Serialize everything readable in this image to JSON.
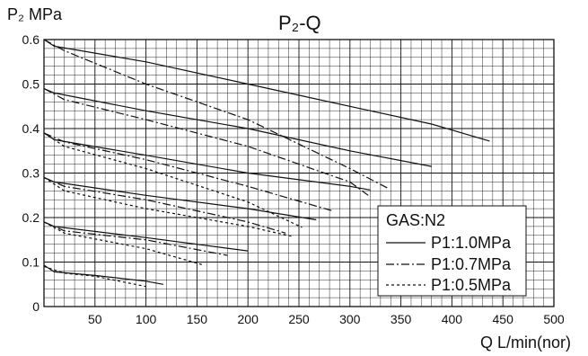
{
  "chart_data": {
    "type": "line",
    "title": "P₂-Q",
    "xlabel": "Q L/min(nor)",
    "ylabel": "P₂ MPa",
    "xlim": [
      0,
      500
    ],
    "ylim": [
      0,
      0.6
    ],
    "x_ticks": [
      "50",
      "100",
      "150",
      "200",
      "250",
      "300",
      "350",
      "400",
      "450",
      "500"
    ],
    "y_ticks": [
      "0",
      "0.1",
      "0.2",
      "0.3",
      "0.4",
      "0.5",
      "0.6"
    ],
    "grid": true,
    "legend_title": "GAS:N2",
    "legend_position": "bottom-right",
    "legend": [
      {
        "label": "P1:1.0MPa",
        "style": "solid"
      },
      {
        "label": "P1:0.7MPa",
        "style": "dashdot"
      },
      {
        "label": "P1:0.5MPa",
        "style": "dotted"
      }
    ],
    "series": [
      {
        "supply": "P1:1.0MPa",
        "style": "solid",
        "curves": [
          {
            "x": [
              0,
              10,
              100,
              200,
              300,
              380,
              437
            ],
            "y": [
              0.6,
              0.585,
              0.55,
              0.5,
              0.45,
              0.41,
              0.372
            ]
          },
          {
            "x": [
              0,
              10,
              100,
              200,
              300,
              380
            ],
            "y": [
              0.49,
              0.48,
              0.44,
              0.4,
              0.35,
              0.315
            ]
          },
          {
            "x": [
              0,
              10,
              100,
              200,
              300,
              320
            ],
            "y": [
              0.39,
              0.375,
              0.34,
              0.3,
              0.27,
              0.262
            ]
          },
          {
            "x": [
              0,
              10,
              100,
              200,
              267
            ],
            "y": [
              0.29,
              0.28,
              0.25,
              0.22,
              0.195
            ]
          },
          {
            "x": [
              0,
              10,
              100,
              200
            ],
            "y": [
              0.19,
              0.18,
              0.155,
              0.125
            ]
          },
          {
            "x": [
              0,
              10,
              50,
              100,
              117
            ],
            "y": [
              0.093,
              0.078,
              0.07,
              0.057,
              0.05
            ]
          }
        ]
      },
      {
        "supply": "P1:0.7MPa",
        "style": "dashdot",
        "curves": [
          {
            "x": [
              0,
              20,
              100,
              200,
              300,
              338
            ],
            "y": [
              0.6,
              0.575,
              0.5,
              0.42,
              0.31,
              0.265
            ]
          },
          {
            "x": [
              0,
              20,
              100,
              200,
              300,
              318
            ],
            "y": [
              0.49,
              0.465,
              0.42,
              0.36,
              0.28,
              0.25
            ]
          },
          {
            "x": [
              0,
              20,
              100,
              200,
              283
            ],
            "y": [
              0.39,
              0.37,
              0.33,
              0.27,
              0.215
            ]
          },
          {
            "x": [
              0,
              20,
              100,
              200,
              237
            ],
            "y": [
              0.29,
              0.27,
              0.24,
              0.19,
              0.165
            ]
          },
          {
            "x": [
              0,
              20,
              100,
              180
            ],
            "y": [
              0.19,
              0.17,
              0.15,
              0.115
            ]
          }
        ]
      },
      {
        "supply": "P1:0.5MPa",
        "style": "dotted",
        "curves": [
          {
            "x": [
              0,
              20,
              100,
              200,
              253
            ],
            "y": [
              0.39,
              0.36,
              0.31,
              0.235,
              0.178
            ]
          },
          {
            "x": [
              0,
              20,
              100,
              200,
              243
            ],
            "y": [
              0.29,
              0.26,
              0.22,
              0.18,
              0.158
            ]
          },
          {
            "x": [
              0,
              20,
              100,
              157
            ],
            "y": [
              0.19,
              0.165,
              0.13,
              0.093
            ]
          },
          {
            "x": [
              0,
              20,
              50,
              100
            ],
            "y": [
              0.09,
              0.075,
              0.068,
              0.045
            ]
          }
        ]
      }
    ]
  },
  "colors": {
    "ink": "#111111",
    "grid": "#111111",
    "background": "#ffffff"
  }
}
